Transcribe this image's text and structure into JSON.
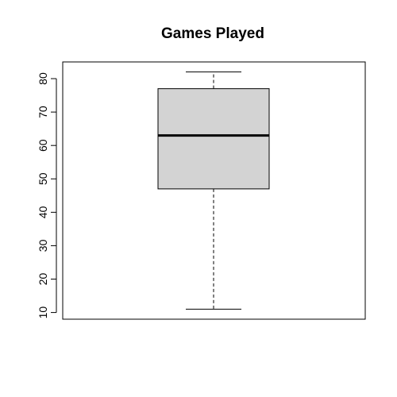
{
  "chart_data": {
    "type": "box",
    "title": "Games Played",
    "xlabel": "",
    "ylabel": "",
    "ylim": [
      8,
      85
    ],
    "yticks": [
      10,
      20,
      30,
      40,
      50,
      60,
      70,
      80
    ],
    "grid": false,
    "legend": "none",
    "series": [
      {
        "min": 11,
        "q1": 47,
        "median": 63,
        "q3": 77,
        "max": 82
      }
    ],
    "colors": {
      "box_fill": "#d3d3d3",
      "stroke": "#000000",
      "background": "#ffffff"
    }
  }
}
